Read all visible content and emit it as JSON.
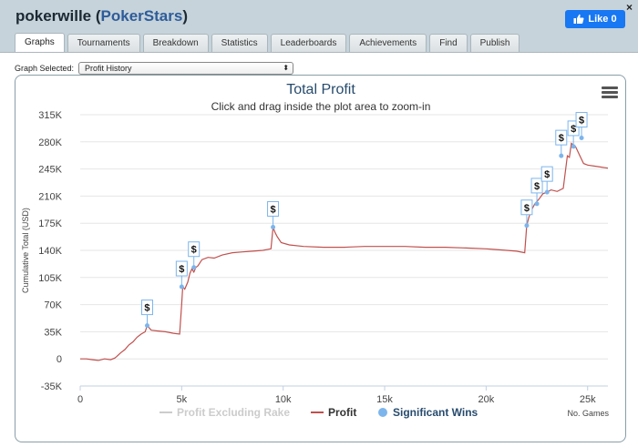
{
  "header": {
    "player_name": "pokerwille",
    "site": "PokerStars",
    "close_label": "×",
    "like_label": "Like 0"
  },
  "tabs": [
    {
      "label": "Graphs",
      "active": true
    },
    {
      "label": "Tournaments"
    },
    {
      "label": "Breakdown"
    },
    {
      "label": "Statistics"
    },
    {
      "label": "Leaderboards"
    },
    {
      "label": "Achievements"
    },
    {
      "label": "Find"
    },
    {
      "label": "Publish"
    }
  ],
  "graph_select": {
    "label": "Graph Selected:",
    "value": "Profit History"
  },
  "chart_data": {
    "type": "line",
    "title": "Total Profit",
    "subtitle": "Click and drag inside the plot area to zoom-in",
    "ylabel": "Cumulative Total (USD)",
    "xlabel": "No. Games",
    "ylim": [
      -35000,
      315000
    ],
    "xlim": [
      0,
      26000
    ],
    "y_ticks": [
      "315K",
      "280K",
      "245K",
      "210K",
      "175K",
      "140K",
      "105K",
      "70K",
      "35K",
      "0",
      "-35K"
    ],
    "y_tick_values": [
      315000,
      280000,
      245000,
      210000,
      175000,
      140000,
      105000,
      70000,
      35000,
      0,
      -35000
    ],
    "x_ticks": [
      "0",
      "5k",
      "10k",
      "15k",
      "20k",
      "25k"
    ],
    "x_tick_values": [
      0,
      5000,
      10000,
      15000,
      20000,
      25000
    ],
    "legend": [
      "Profit Excluding Rake",
      "Profit",
      "Significant Wins"
    ],
    "series": [
      {
        "name": "Profit",
        "color": "#c0504d",
        "x": [
          0,
          300,
          600,
          900,
          1200,
          1500,
          1700,
          1800,
          2000,
          2200,
          2400,
          2600,
          2800,
          3000,
          3200,
          3300,
          3500,
          3800,
          4200,
          4600,
          4900,
          5000,
          5050,
          5150,
          5300,
          5400,
          5500,
          5600,
          5700,
          5800,
          6000,
          6300,
          6600,
          7000,
          7500,
          8000,
          8500,
          9000,
          9400,
          9500,
          9600,
          9700,
          9900,
          10300,
          11000,
          12000,
          13000,
          14000,
          15000,
          16000,
          17000,
          18000,
          19000,
          20000,
          20500,
          21000,
          21500,
          21900,
          22000,
          22100,
          22200,
          22400,
          22600,
          22800,
          23000,
          23200,
          23500,
          23800,
          24000,
          24100,
          24200,
          24400,
          24600,
          24800,
          25000,
          25500,
          26000
        ],
        "y": [
          0,
          0,
          -1000,
          -2000,
          0,
          -1000,
          1000,
          3000,
          8000,
          12000,
          18000,
          22000,
          28000,
          32000,
          35000,
          43000,
          37000,
          36000,
          35000,
          33000,
          32000,
          70000,
          93000,
          90000,
          99000,
          110000,
          116000,
          112000,
          118000,
          120000,
          128000,
          131000,
          130000,
          134000,
          137000,
          138000,
          139000,
          140000,
          142000,
          170000,
          163000,
          158000,
          150000,
          147000,
          145000,
          144000,
          144000,
          145000,
          145000,
          145000,
          144000,
          144000,
          143000,
          142000,
          141000,
          140000,
          139000,
          137000,
          172000,
          182000,
          190000,
          200000,
          206000,
          213000,
          215000,
          218000,
          216000,
          220000,
          262000,
          260000,
          278000,
          274000,
          263000,
          252000,
          250000,
          248000,
          246000
        ]
      }
    ],
    "significant_wins": [
      {
        "x": 3300,
        "y": 43000
      },
      {
        "x": 5000,
        "y": 93000
      },
      {
        "x": 5600,
        "y": 118000
      },
      {
        "x": 9500,
        "y": 170000
      },
      {
        "x": 22000,
        "y": 172000
      },
      {
        "x": 22500,
        "y": 200000
      },
      {
        "x": 23000,
        "y": 215000
      },
      {
        "x": 23700,
        "y": 262000
      },
      {
        "x": 24300,
        "y": 274000
      },
      {
        "x": 24700,
        "y": 285000
      }
    ],
    "marker_label": "$",
    "colors": {
      "profit": "#c0504d",
      "excl_rake": "#cccccc",
      "significant": "#7cb5ec",
      "grid": "#e6e6e6",
      "title": "#274b6d"
    }
  }
}
